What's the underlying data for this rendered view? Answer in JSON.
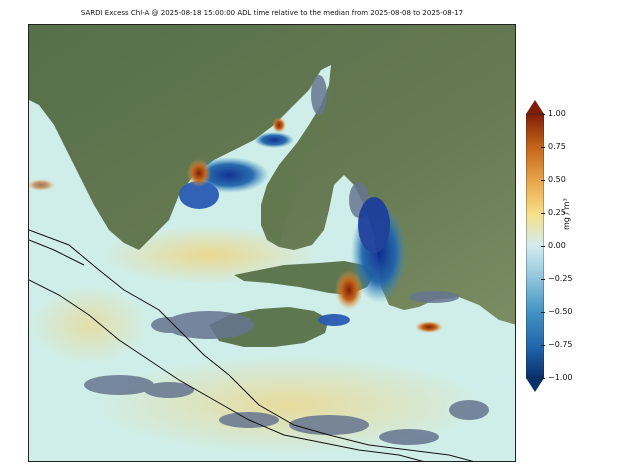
{
  "title": "SARDI Excess Chl-A @ 2025-08-18 15:00:00 ADL time relative to the median from 2025-08-08 to 2025-08-17",
  "colorbar": {
    "ticks": [
      "1.00",
      "0.75",
      "0.50",
      "0.25",
      "0.00",
      "−0.25",
      "−0.50",
      "−0.75",
      "−1.00"
    ],
    "unit_label": "mg / m³",
    "range": [
      -1.0,
      1.0
    ],
    "colormap": [
      "#08306b",
      "#2166ac",
      "#4393c3",
      "#92c5de",
      "#d1ecf0",
      "#e6f4c8",
      "#f6e08a",
      "#e8a449",
      "#c2621a",
      "#7f1e06"
    ]
  },
  "map": {
    "land_color": "#5e7550",
    "land_highlight": "#7d8f63",
    "cloud_mask_color": "#66758f",
    "near_zero_water": "#cfeeea",
    "positive_anomaly": "#a8320c",
    "negative_anomaly": "#1f4fb0"
  }
}
